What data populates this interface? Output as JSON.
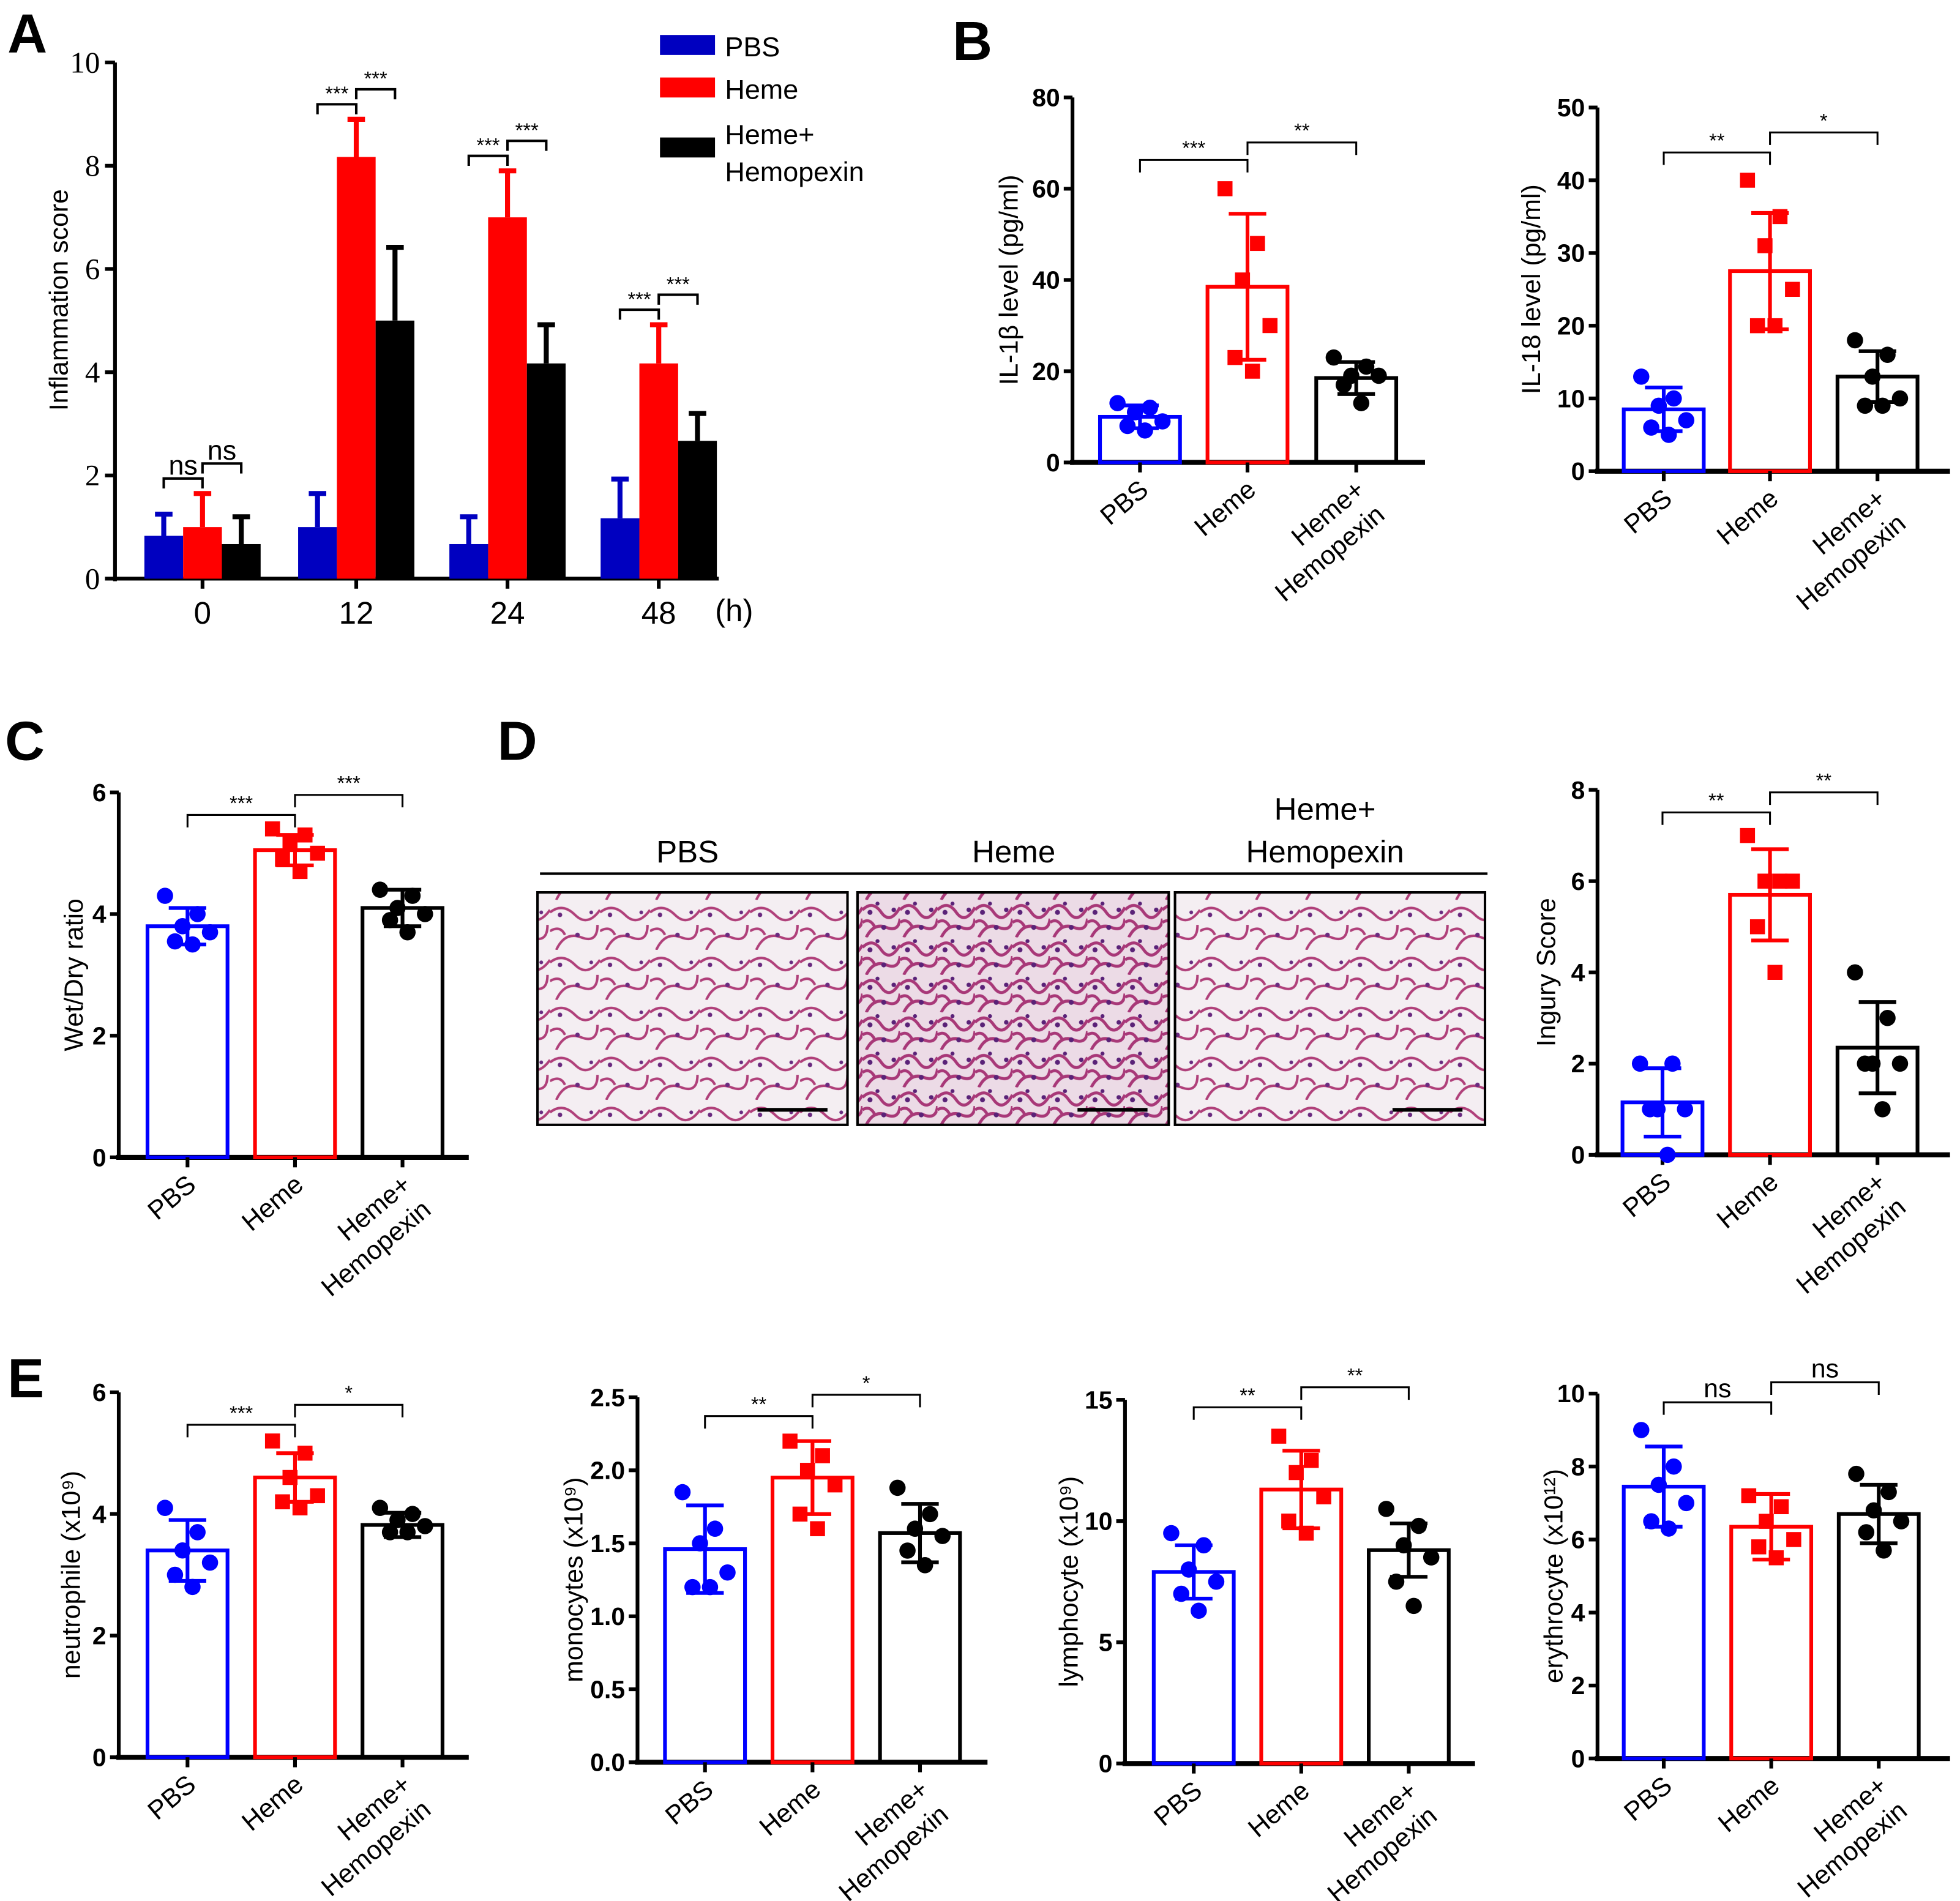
{
  "panels": [
    "A",
    "B",
    "C",
    "D",
    "E"
  ],
  "colors": {
    "PBS": "#0000ff",
    "Heme": "#ff0000",
    "HH": "#000000",
    "PBS_fill_A": "#0000c0"
  },
  "groups": [
    "PBS",
    "Heme",
    "Heme+",
    "Hemopexin"
  ],
  "histology": {
    "labels": [
      "PBS",
      "Heme",
      "Heme+",
      "Hemopexin"
    ]
  },
  "chart_data": [
    {
      "id": "A",
      "type": "bar",
      "ylabel": "Inflammation score",
      "xlabel": "(h)",
      "categories": [
        "0",
        "12",
        "24",
        "48"
      ],
      "ylim": [
        0,
        10
      ],
      "yticks": [
        "0",
        "2",
        "4",
        "6",
        "8",
        "10"
      ],
      "legend": [
        "PBS",
        "Heme",
        "Heme+",
        "Hemopexin"
      ],
      "legend_position": "top-right",
      "series": [
        {
          "name": "PBS",
          "values": [
            0.83,
            1.0,
            0.67,
            1.17
          ],
          "err": [
            0.42,
            0.65,
            0.53,
            0.76
          ]
        },
        {
          "name": "Heme",
          "values": [
            1.0,
            8.17,
            7.0,
            4.17
          ],
          "err": [
            0.65,
            0.73,
            0.9,
            0.75
          ]
        },
        {
          "name": "Heme+Hemopexin",
          "values": [
            0.67,
            5.0,
            4.17,
            2.67
          ],
          "err": [
            0.53,
            1.42,
            0.75,
            0.53
          ]
        }
      ],
      "significance": [
        [
          "ns",
          "ns"
        ],
        [
          "***",
          "***"
        ],
        [
          "***",
          "***"
        ],
        [
          "***",
          "***"
        ]
      ]
    },
    {
      "id": "B1",
      "type": "bar",
      "ylabel": "IL-1β level (pg/ml)",
      "ylim": [
        0,
        80
      ],
      "yticks": [
        "0",
        "20",
        "40",
        "60",
        "80"
      ],
      "means": [
        10,
        38.5,
        18.5
      ],
      "sd": [
        2.5,
        16,
        3.5
      ],
      "points": [
        [
          13,
          12,
          11,
          9,
          8,
          7
        ],
        [
          60,
          48,
          40,
          30,
          23,
          20
        ],
        [
          23,
          21,
          19,
          19,
          17,
          13
        ]
      ],
      "significance": [
        "***",
        "**"
      ]
    },
    {
      "id": "B2",
      "type": "bar",
      "ylabel": "IL-18 level (pg/ml)",
      "ylim": [
        0,
        50
      ],
      "yticks": [
        "0",
        "10",
        "20",
        "30",
        "40",
        "50"
      ],
      "means": [
        8.5,
        27.5,
        13
      ],
      "sd": [
        3,
        8,
        3.5
      ],
      "points": [
        [
          13,
          10,
          9,
          7,
          6,
          5
        ],
        [
          40,
          35,
          31,
          25,
          20,
          20
        ],
        [
          18,
          16,
          13,
          10,
          9,
          9
        ]
      ],
      "significance": [
        "**",
        "*"
      ]
    },
    {
      "id": "C",
      "type": "bar",
      "ylabel": "Wet/Dry ratio",
      "ylim": [
        0,
        6
      ],
      "yticks": [
        "0",
        "2",
        "4",
        "6"
      ],
      "means": [
        3.8,
        5.05,
        4.1
      ],
      "sd": [
        0.3,
        0.25,
        0.3
      ],
      "points": [
        [
          4.3,
          4.0,
          3.8,
          3.7,
          3.55,
          3.5
        ],
        [
          5.4,
          5.3,
          5.2,
          5.0,
          4.9,
          4.7
        ],
        [
          4.4,
          4.3,
          4.1,
          4.0,
          3.9,
          3.7
        ]
      ],
      "significance": [
        "***",
        "***"
      ]
    },
    {
      "id": "D",
      "type": "bar",
      "ylabel": "Ingury Score",
      "ylim": [
        0,
        8
      ],
      "yticks": [
        "0",
        "2",
        "4",
        "6",
        "8"
      ],
      "means": [
        1.15,
        5.7,
        2.35
      ],
      "sd": [
        0.75,
        1.0,
        1.0
      ],
      "points": [
        [
          2,
          2,
          1,
          1,
          1,
          0
        ],
        [
          7,
          6,
          6,
          6,
          5,
          4
        ],
        [
          4,
          3,
          2,
          2,
          2,
          1
        ]
      ],
      "significance": [
        "**",
        "**"
      ]
    },
    {
      "id": "E1",
      "type": "bar",
      "ylabel": "neutrophile (x10⁹)",
      "ylim": [
        0,
        6
      ],
      "yticks": [
        "0",
        "2",
        "4",
        "6"
      ],
      "means": [
        3.4,
        4.6,
        3.82
      ],
      "sd": [
        0.5,
        0.4,
        0.2
      ],
      "points": [
        [
          4.1,
          3.7,
          3.4,
          3.2,
          3.0,
          2.8
        ],
        [
          5.2,
          5.0,
          4.6,
          4.3,
          4.2,
          4.1
        ],
        [
          4.1,
          4.0,
          3.9,
          3.8,
          3.7,
          3.7
        ]
      ],
      "significance": [
        "***",
        "*"
      ]
    },
    {
      "id": "E2",
      "type": "bar",
      "ylabel": "monocytes (x10⁹)",
      "ylim": [
        0,
        2.5
      ],
      "yticks": [
        "0.0",
        "0.5",
        "1.0",
        "1.5",
        "2.0",
        "2.5"
      ],
      "means": [
        1.46,
        1.95,
        1.57
      ],
      "sd": [
        0.3,
        0.25,
        0.2
      ],
      "points": [
        [
          1.85,
          1.6,
          1.5,
          1.3,
          1.2,
          1.2
        ],
        [
          2.2,
          2.1,
          2.0,
          1.9,
          1.7,
          1.6
        ],
        [
          1.88,
          1.7,
          1.6,
          1.55,
          1.45,
          1.35
        ]
      ],
      "significance": [
        "**",
        "*"
      ]
    },
    {
      "id": "E3",
      "type": "bar",
      "ylabel": "lymphocyte (x10⁹)",
      "ylim": [
        0,
        15
      ],
      "yticks": [
        "0",
        "5",
        "10",
        "15"
      ],
      "means": [
        7.9,
        11.3,
        8.8
      ],
      "sd": [
        1.1,
        1.6,
        1.1
      ],
      "points": [
        [
          9.5,
          9.0,
          8.0,
          7.5,
          7.0,
          6.3
        ],
        [
          13.5,
          12.5,
          12.0,
          11.0,
          10.0,
          9.5
        ],
        [
          10.5,
          9.8,
          9.0,
          8.5,
          7.5,
          6.5
        ]
      ],
      "significance": [
        "**",
        "**"
      ]
    },
    {
      "id": "E4",
      "type": "bar",
      "ylabel": "erythrocyte (x10¹²)",
      "ylim": [
        0,
        10
      ],
      "yticks": [
        "0",
        "2",
        "4",
        "6",
        "8",
        "10"
      ],
      "means": [
        7.45,
        6.35,
        6.7
      ],
      "sd": [
        1.1,
        0.9,
        0.8
      ],
      "points": [
        [
          9.0,
          8.0,
          7.5,
          7.0,
          6.5,
          6.3
        ],
        [
          7.2,
          6.9,
          6.5,
          6.0,
          5.8,
          5.5
        ],
        [
          7.8,
          7.3,
          6.8,
          6.5,
          6.2,
          5.7
        ]
      ],
      "significance": [
        "ns",
        "ns"
      ]
    }
  ]
}
